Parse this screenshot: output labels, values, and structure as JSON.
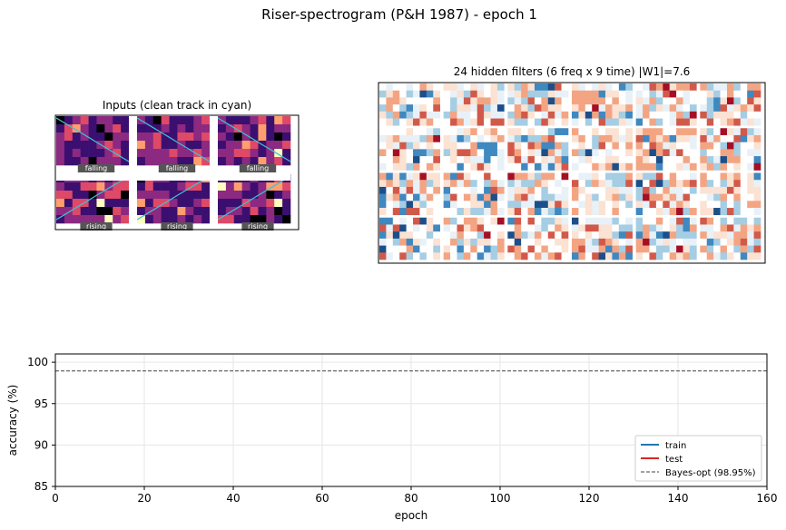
{
  "figure": {
    "suptitle": "Riser-spectrogram (P&H 1987)  -  epoch 1"
  },
  "colors": {
    "train": "#1f77b4",
    "test": "#d62728",
    "bayes": "#444444",
    "cyan_track": "#3fc1d4",
    "magma": [
      "#000004",
      "#3b0f70",
      "#8c2981",
      "#de4968",
      "#fe9f6d",
      "#fcfdbf"
    ],
    "rdbu": [
      "#1b4f8a",
      "#3f88c0",
      "#a5cde3",
      "#e8f1f7",
      "#ffffff",
      "#fbe2d2",
      "#f3a583",
      "#d2594a",
      "#a50f25"
    ]
  },
  "chart_data": [
    {
      "type": "heatmap",
      "title": "Inputs (clean track in cyan)",
      "grid": {
        "rows": 2,
        "cols": 3
      },
      "panel_labels": [
        "falling",
        "falling",
        "falling",
        "rising",
        "rising",
        "rising"
      ],
      "panel_size": {
        "freq": 6,
        "time": 9
      }
    },
    {
      "type": "heatmap",
      "title": "24 hidden filters (6 freq x 9 time)  |W1|=7.6",
      "grid": {
        "rows": 4,
        "cols": 6
      },
      "filter_size": {
        "freq": 6,
        "time": 9
      },
      "colormap": "RdBu"
    },
    {
      "type": "line",
      "xlabel": "epoch",
      "ylabel": "accuracy (%)",
      "xlim": [
        0,
        160
      ],
      "ylim": [
        85,
        101
      ],
      "xticks": [
        0,
        20,
        40,
        60,
        80,
        100,
        120,
        140,
        160
      ],
      "yticks": [
        85,
        90,
        95,
        100
      ],
      "grid": true,
      "legend_position": "lower-right",
      "series": [
        {
          "name": "train",
          "x": [],
          "y": [],
          "style": "solid"
        },
        {
          "name": "test",
          "x": [],
          "y": [],
          "style": "solid"
        },
        {
          "name": "Bayes-opt (98.95%)",
          "x": [
            0,
            160
          ],
          "y": [
            98.95,
            98.95
          ],
          "style": "dashed"
        }
      ]
    }
  ]
}
